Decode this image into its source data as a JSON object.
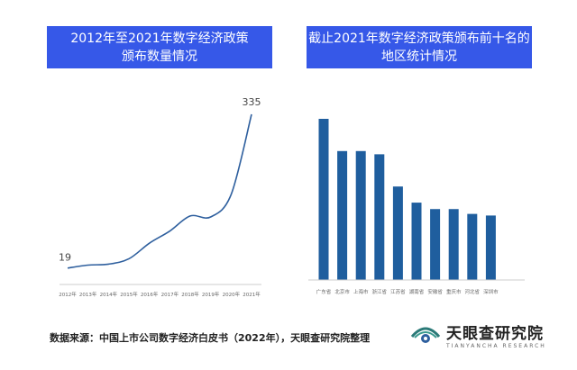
{
  "titles": {
    "left_line1": "2012年至2021年数字经济政策",
    "left_line2": "颁布数量情况",
    "right_line1": "截止2021年数字经济政策颁布前十名的",
    "right_line2": "地区统计情况"
  },
  "footer": "数据来源：中国上市公司数字经济白皮书（2022年），天眼查研究院整理",
  "logo": {
    "main": "天眼查研究院",
    "sub": "TIANYANCHA RESEARCH"
  },
  "colors": {
    "title_bg": "#3658E8",
    "line": "#2E5F9E",
    "bar": "#1F5E9E"
  },
  "chart_data": [
    {
      "type": "line",
      "x": [
        "2012年",
        "2013年",
        "2014年",
        "2015年",
        "2016年",
        "2017年",
        "2018年",
        "2019年",
        "2020年",
        "2021年"
      ],
      "values": [
        19,
        25,
        27,
        38,
        70,
        95,
        126,
        124,
        170,
        335
      ],
      "data_labels": [
        {
          "index": 0,
          "text": "19"
        },
        {
          "index": 9,
          "text": "335"
        }
      ],
      "grid": false
    },
    {
      "type": "bar",
      "categories": [
        "广东省",
        "北京市",
        "上海市",
        "浙江省",
        "江苏省",
        "湖南省",
        "安徽省",
        "重庆市",
        "河北省",
        "深圳市"
      ],
      "values": [
        100,
        80,
        80,
        78,
        58,
        48,
        44,
        44,
        41,
        40
      ],
      "grid": false
    }
  ]
}
